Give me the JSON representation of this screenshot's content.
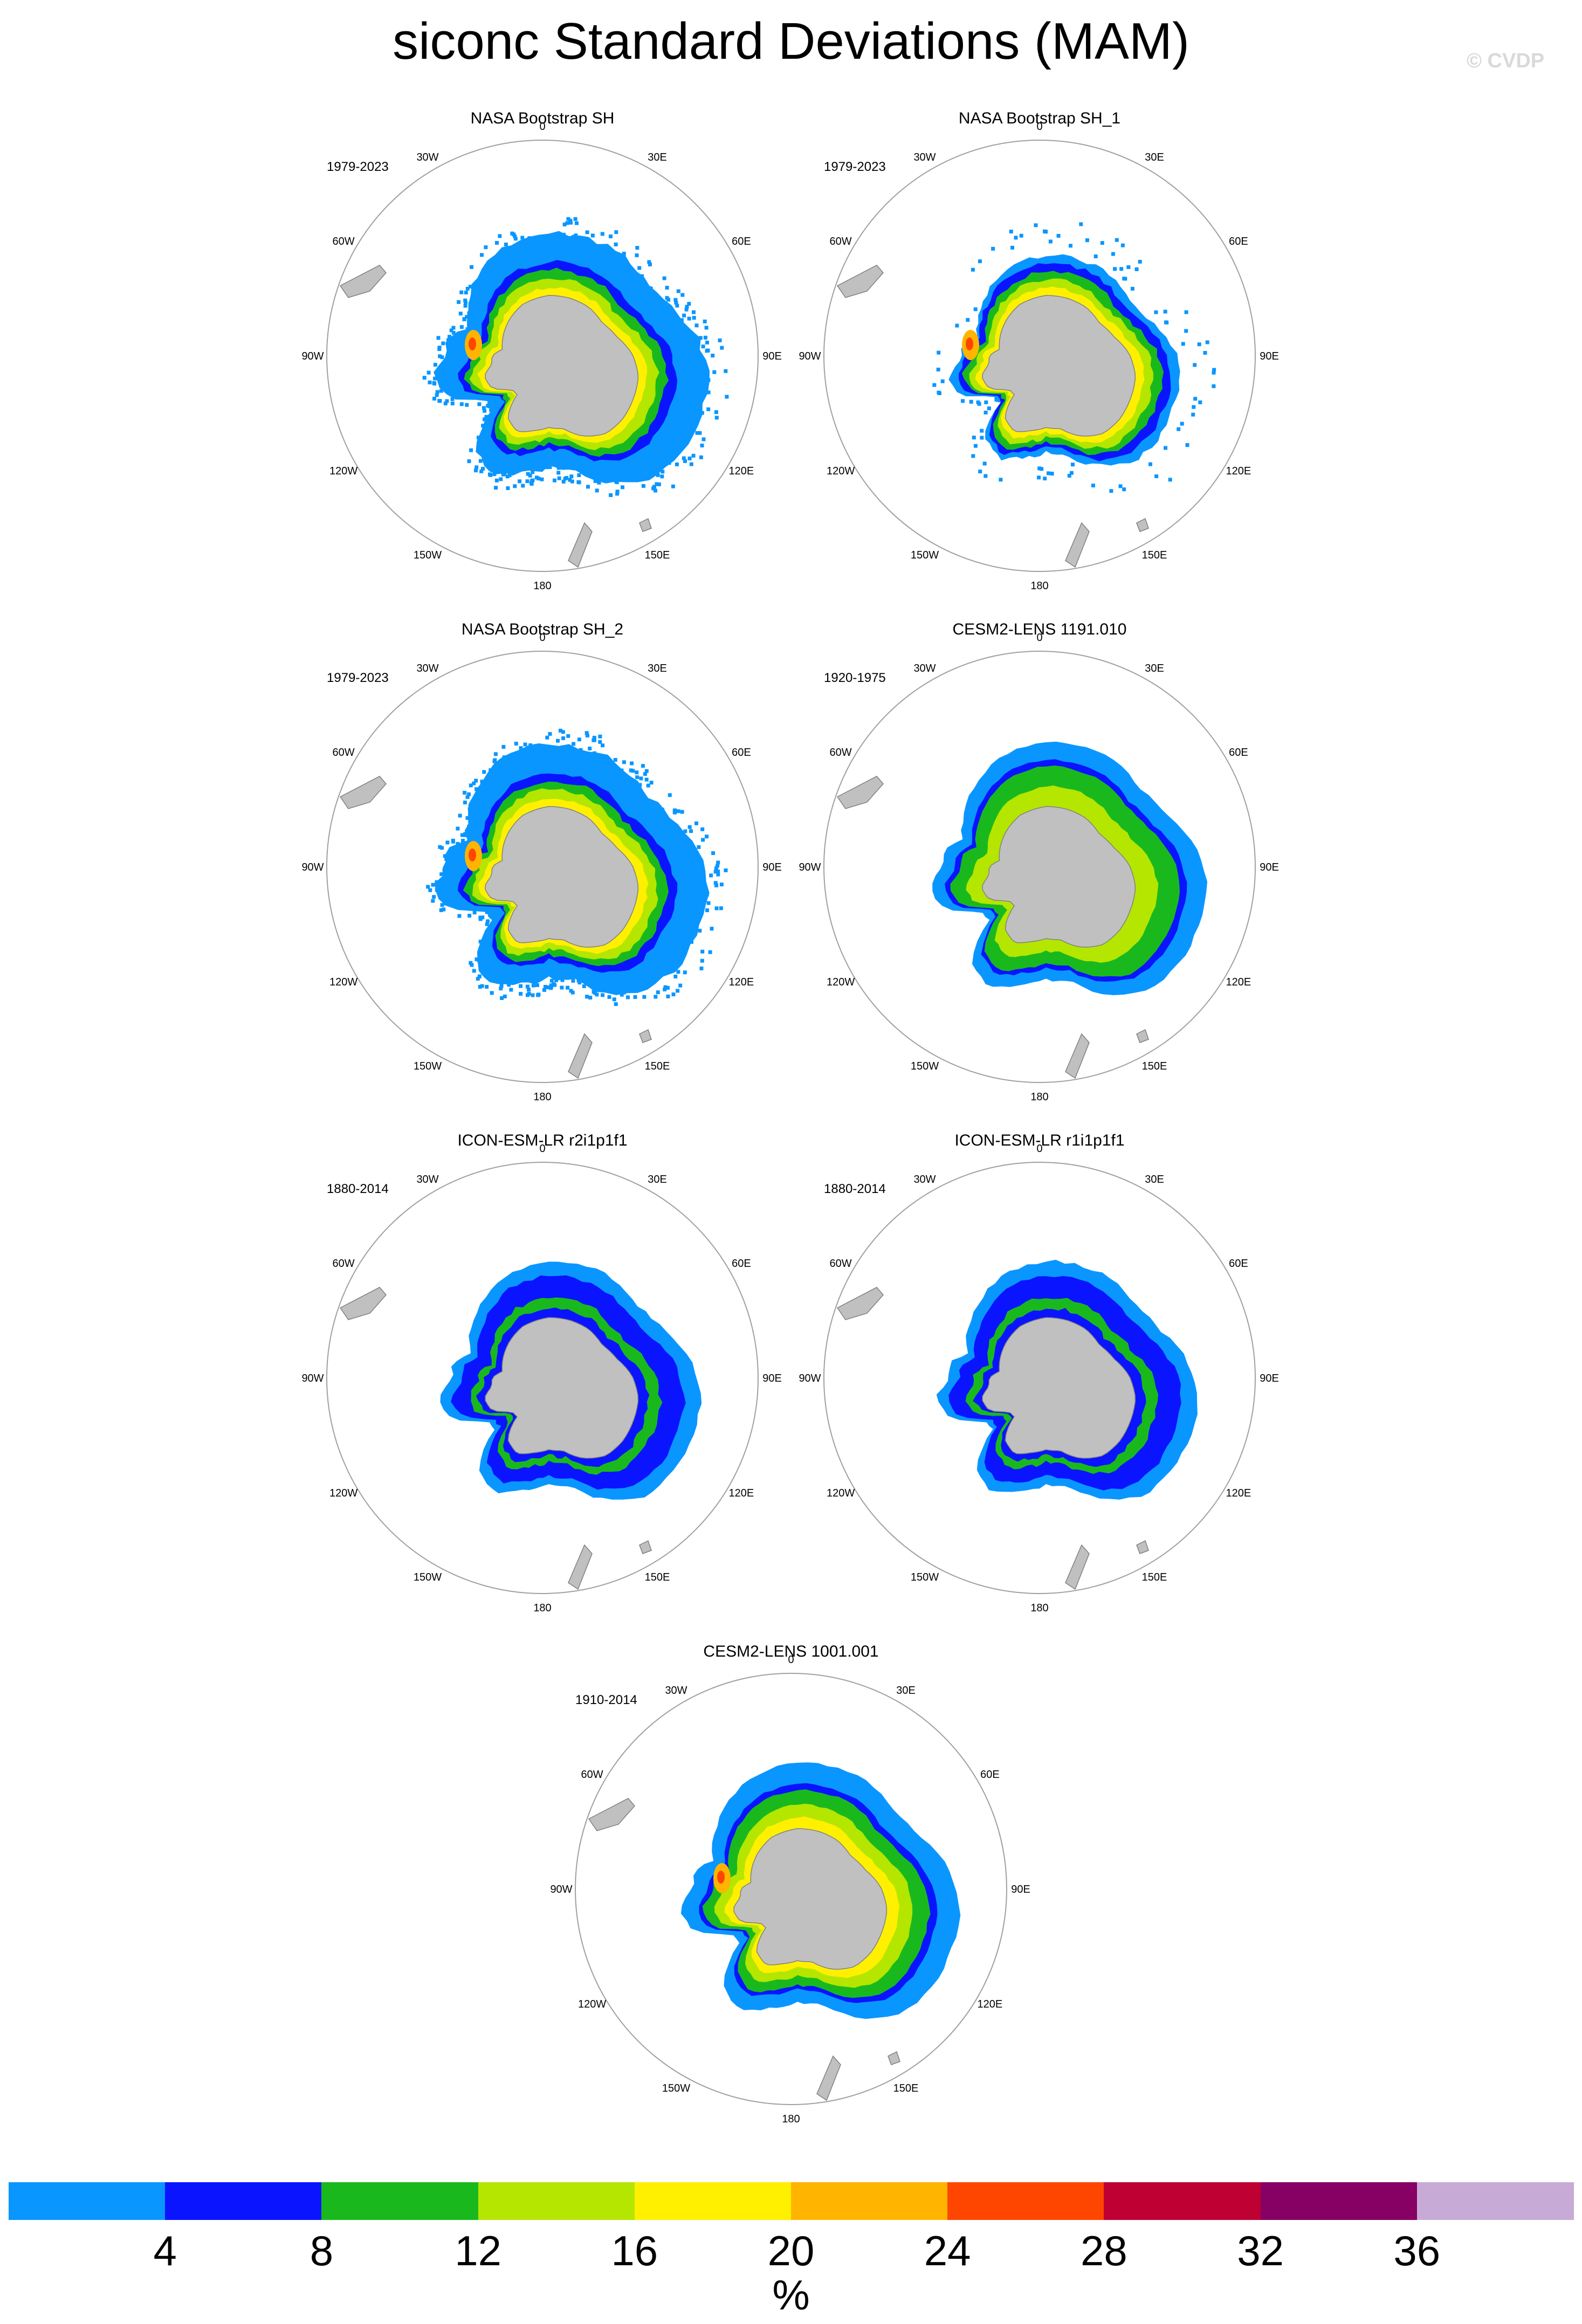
{
  "title": "siconc Standard Deviations (MAM)",
  "watermark": "© CVDP",
  "lon_labels": [
    "0",
    "30E",
    "60E",
    "90E",
    "120E",
    "150E",
    "180",
    "150W",
    "120W",
    "90W",
    "60W",
    "30W"
  ],
  "panels": [
    {
      "title": "NASA Bootstrap SH",
      "period": "1979-2023",
      "style": "obs_full"
    },
    {
      "title": "NASA Bootstrap SH_1",
      "period": "1979-2023",
      "style": "obs_sparse"
    },
    {
      "title": "NASA Bootstrap SH_2",
      "period": "1979-2023",
      "style": "obs_full"
    },
    {
      "title": "CESM2-LENS 1191.010",
      "period": "1920-1975",
      "style": "cesm"
    },
    {
      "title": "ICON-ESM-LR r2i1p1f1",
      "period": "1880-2014",
      "style": "icon"
    },
    {
      "title": "ICON-ESM-LR r1i1p1f1",
      "period": "1880-2014",
      "style": "icon"
    },
    {
      "title": "CESM2-LENS 1001.001",
      "period": "1910-2014",
      "style": "cesm_bright"
    }
  ],
  "colorbar": {
    "colors": [
      "#0a96ff",
      "#0a14ff",
      "#19b91e",
      "#b4e600",
      "#fff000",
      "#ffb400",
      "#ff4600",
      "#be0032",
      "#870064",
      "#c8aad7"
    ],
    "tick_labels": [
      "4",
      "8",
      "12",
      "16",
      "20",
      "24",
      "28",
      "32",
      "36"
    ],
    "unit": "%"
  },
  "colors": {
    "land": "#c0c0c0",
    "land_outline": "#808080",
    "circle": "#a0a0a0"
  }
}
